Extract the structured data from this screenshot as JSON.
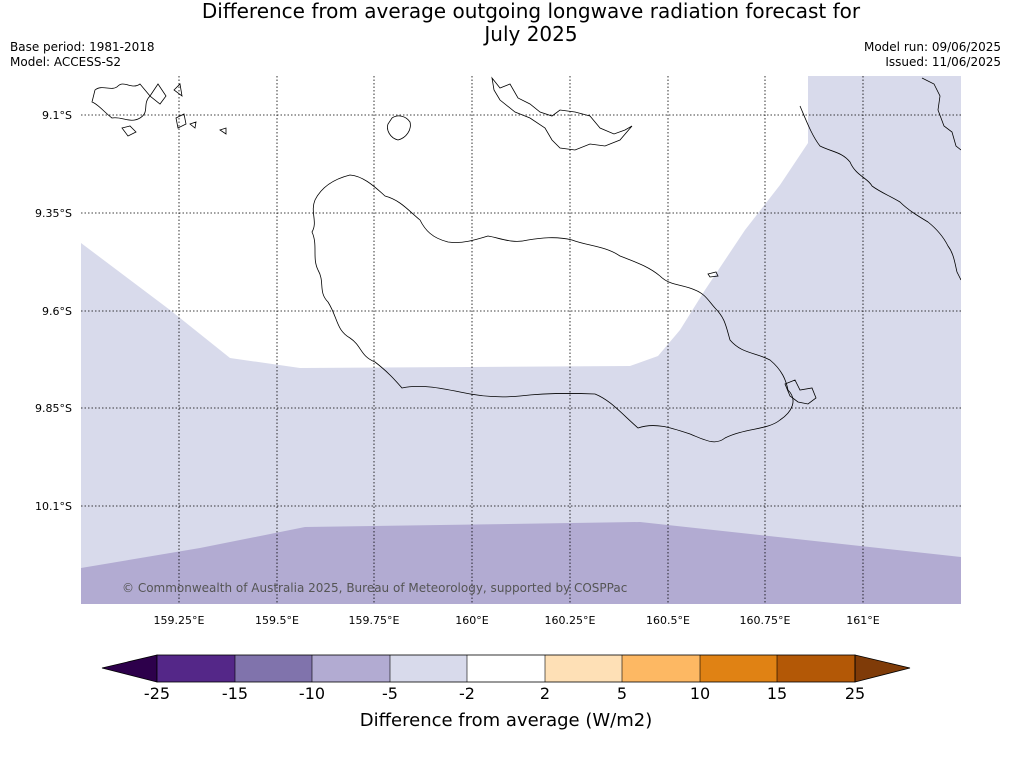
{
  "title_line1": "Difference from average outgoing longwave radiation forecast for",
  "title_line2": "July 2025",
  "meta_left": {
    "base_period": "Base period: 1981-2018",
    "model": "Model: ACCESS-S2"
  },
  "meta_right": {
    "model_run": "Model run: 09/06/2025",
    "issued": "Issued: 11/06/2025"
  },
  "copyright": "© Commonwealth of Australia 2025, Bureau of Meteorology, supported by COSPPac",
  "map": {
    "lat_labels": [
      "9.1°S",
      "9.35°S",
      "9.6°S",
      "9.85°S",
      "10.1°S"
    ],
    "lon_labels": [
      "159.25°E",
      "159.5°E",
      "159.75°E",
      "160°E",
      "160.25°E",
      "160.5°E",
      "160.75°E",
      "161°E"
    ]
  },
  "colorbar": {
    "title": "Difference from average (W/m2)",
    "tick_labels": [
      "-25",
      "-15",
      "-10",
      "-5",
      "-2",
      "2",
      "5",
      "10",
      "15",
      "25"
    ],
    "segments": [
      {
        "range": "< -25",
        "color": "#2d004b"
      },
      {
        "range": "-25 to -15",
        "color": "#542788"
      },
      {
        "range": "-15 to -10",
        "color": "#8073ac"
      },
      {
        "range": "-10 to -5",
        "color": "#b2abd2"
      },
      {
        "range": "-5 to -2",
        "color": "#d8daeb"
      },
      {
        "range": "-2 to 2",
        "color": "#ffffff"
      },
      {
        "range": "2 to 5",
        "color": "#fee0b6"
      },
      {
        "range": "5 to 10",
        "color": "#fdb863"
      },
      {
        "range": "10 to 15",
        "color": "#e08214"
      },
      {
        "range": "15 to 25",
        "color": "#b35806"
      },
      {
        "range": "> 25",
        "color": "#7f3b08"
      }
    ]
  }
}
